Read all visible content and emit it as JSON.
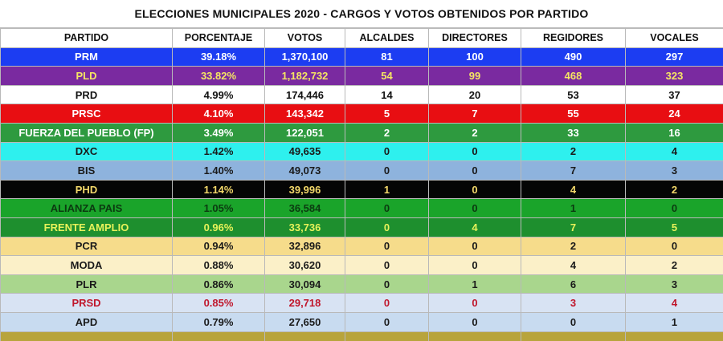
{
  "title": "ELECCIONES MUNICIPALES 2020 - CARGOS Y VOTOS OBTENIDOS POR PARTIDO",
  "chart_data": {
    "type": "table",
    "title": "ELECCIONES MUNICIPALES 2020 - CARGOS Y VOTOS OBTENIDOS POR PARTIDO",
    "columns": [
      "PARTIDO",
      "PORCENTAJE",
      "VOTOS",
      "ALCALDES",
      "DIRECTORES",
      "REGIDORES",
      "VOCALES"
    ],
    "rows": [
      {
        "cells": [
          "PRM",
          "39.18%",
          "1,370,100",
          "81",
          "100",
          "490",
          "297"
        ],
        "name_bg": "#1c3df2",
        "data_bg": "#1c3df2",
        "name_color": "#ffffff",
        "data_color": "#ffffff"
      },
      {
        "cells": [
          "PLD",
          "33.82%",
          "1,182,732",
          "54",
          "99",
          "468",
          "323"
        ],
        "name_bg": "#7a2aa0",
        "data_bg": "#7a2aa0",
        "name_color": "#f5e663",
        "data_color": "#f5e663"
      },
      {
        "cells": [
          "PRD",
          "4.99%",
          "174,446",
          "14",
          "20",
          "53",
          "37"
        ],
        "name_bg": "#ffffff",
        "data_bg": "#ffffff",
        "name_color": "#111111",
        "data_color": "#111111"
      },
      {
        "cells": [
          "PRSC",
          "4.10%",
          "143,342",
          "5",
          "7",
          "55",
          "24"
        ],
        "name_bg": "#e80e12",
        "data_bg": "#e80e12",
        "name_color": "#ffffff",
        "data_color": "#ffffff"
      },
      {
        "cells": [
          "FUERZA DEL PUEBLO (FP)",
          "3.49%",
          "122,051",
          "2",
          "2",
          "33",
          "16"
        ],
        "name_bg": "#2e9a3f",
        "data_bg": "#2e9a3f",
        "name_color": "#ffffff",
        "data_color": "#ffffff"
      },
      {
        "cells": [
          "DXC",
          "1.42%",
          "49,635",
          "0",
          "0",
          "2",
          "4"
        ],
        "name_bg": "#2ef0ee",
        "data_bg": "#2ef0ee",
        "name_color": "#1a1a1a",
        "data_color": "#1a1a1a"
      },
      {
        "cells": [
          "BIS",
          "1.40%",
          "49,073",
          "0",
          "0",
          "7",
          "3"
        ],
        "name_bg": "#8eb3dd",
        "data_bg": "#8eb3dd",
        "name_color": "#1a1a1a",
        "data_color": "#1a1a1a"
      },
      {
        "cells": [
          "PHD",
          "1.14%",
          "39,996",
          "1",
          "0",
          "4",
          "2"
        ],
        "name_bg": "#050505",
        "data_bg": "#050505",
        "name_color": "#f3d86a",
        "data_color": "#f3d86a"
      },
      {
        "cells": [
          "ALIANZA PAIS",
          "1.05%",
          "36,584",
          "0",
          "0",
          "1",
          "0"
        ],
        "name_bg": "#1aa42a",
        "data_bg": "#1aa42a",
        "name_color": "#0b3b10",
        "data_color": "#0b3b10"
      },
      {
        "cells": [
          "FRENTE AMPLIO",
          "0.96%",
          "33,736",
          "0",
          "4",
          "7",
          "5"
        ],
        "name_bg": "#1e8f2e",
        "data_bg": "#1e8f2e",
        "name_color": "#e8f25a",
        "data_color": "#e8f25a"
      },
      {
        "cells": [
          "PCR",
          "0.94%",
          "32,896",
          "0",
          "0",
          "2",
          "0"
        ],
        "name_bg": "#f6dc8b",
        "data_bg": "#f6dc8b",
        "name_color": "#1a1a1a",
        "data_color": "#1a1a1a"
      },
      {
        "cells": [
          "MODA",
          "0.88%",
          "30,620",
          "0",
          "0",
          "4",
          "2"
        ],
        "name_bg": "#fbf0c8",
        "data_bg": "#fbf0c8",
        "name_color": "#1a1a1a",
        "data_color": "#1a1a1a"
      },
      {
        "cells": [
          "PLR",
          "0.86%",
          "30,094",
          "0",
          "1",
          "6",
          "3"
        ],
        "name_bg": "#a9d68d",
        "data_bg": "#a9d68d",
        "name_color": "#1a1a1a",
        "data_color": "#1a1a1a"
      },
      {
        "cells": [
          "PRSD",
          "0.85%",
          "29,718",
          "0",
          "0",
          "3",
          "4"
        ],
        "name_bg": "#d8e3f3",
        "data_bg": "#d8e3f3",
        "name_color": "#c0162b",
        "data_color": "#c0162b"
      },
      {
        "cells": [
          "APD",
          "0.79%",
          "27,650",
          "0",
          "0",
          "0",
          "1"
        ],
        "name_bg": "#c8dbf0",
        "data_bg": "#c8dbf0",
        "name_color": "#1a1a1a",
        "data_color": "#1a1a1a"
      },
      {
        "cells": [
          "",
          "",
          "",
          "",
          "",
          "",
          ""
        ],
        "name_bg": "#b8a43c",
        "data_bg": "#b8a43c",
        "name_color": "#1a1a1a",
        "data_color": "#1a1a1a"
      }
    ]
  }
}
